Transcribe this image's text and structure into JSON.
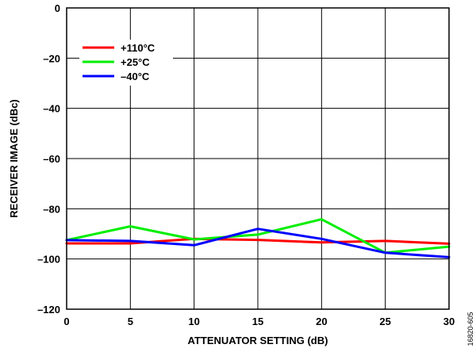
{
  "chart_data": {
    "type": "line",
    "title": "",
    "xlabel": "ATTENUATOR SETTING (dB)",
    "ylabel": "RECEIVER IMAGE (dBc)",
    "xlim": [
      0,
      30
    ],
    "ylim": [
      -120,
      0
    ],
    "x_ticks": [
      0,
      5,
      10,
      15,
      20,
      25,
      30
    ],
    "x_tick_labels": [
      "0",
      "5",
      "10",
      "15",
      "20",
      "25",
      "30"
    ],
    "y_ticks": [
      0,
      -20,
      -40,
      -60,
      -80,
      -100,
      -120
    ],
    "y_tick_labels": [
      "0",
      "–20",
      "–40",
      "–60",
      "–80",
      "–100",
      "–120"
    ],
    "grid": true,
    "legend_position": "top-left",
    "x": [
      0,
      5,
      10,
      15,
      20,
      25,
      30
    ],
    "series": [
      {
        "name": "+110°C",
        "color": "#ff0000",
        "values": [
          -93.8,
          -93.8,
          -92.0,
          -92.4,
          -93.4,
          -92.8,
          -93.9
        ]
      },
      {
        "name": "+25°C",
        "color": "#00ee00",
        "values": [
          -92.5,
          -87.0,
          -92.2,
          -90.3,
          -84.2,
          -97.5,
          -95.1
        ]
      },
      {
        "name": "–40°C",
        "color": "#0000ff",
        "values": [
          -92.5,
          -92.8,
          -94.5,
          -88.0,
          -92.0,
          -97.5,
          -99.3
        ]
      }
    ],
    "figure_id": "16820-605"
  }
}
